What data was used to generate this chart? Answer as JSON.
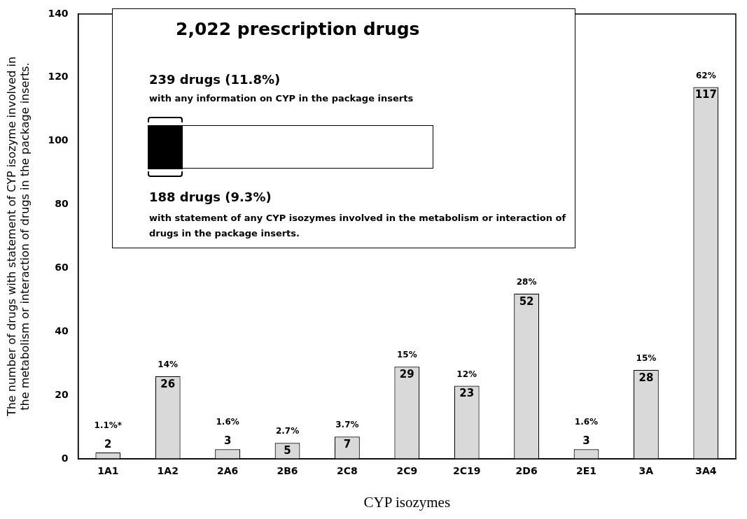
{
  "chart_data": {
    "type": "bar",
    "xlabel": "CYP isozymes",
    "ylabel": "The number of drugs with statement of CYP isozyme involved in the metabolism or interaction of drugs in the package inserts.",
    "categories": [
      "1A1",
      "1A2",
      "2A6",
      "2B6",
      "2C8",
      "2C9",
      "2C19",
      "2D6",
      "2E1",
      "3A",
      "3A4"
    ],
    "values": [
      2,
      26,
      3,
      5,
      7,
      29,
      23,
      52,
      3,
      28,
      117
    ],
    "color": "#d9d9d9",
    "data_labels": true,
    "grid": false,
    "ylim": [
      0,
      140
    ],
    "yticks": [
      0,
      20,
      40,
      60,
      80,
      100,
      120,
      140
    ],
    "annotations": [
      {
        "text": "1.1%*",
        "x": "1A1",
        "y": 2
      },
      {
        "text": "14%",
        "x": "1A2",
        "y": 26
      },
      {
        "text": "1.6%",
        "x": "2A6",
        "y": 3
      },
      {
        "text": "2.7%",
        "x": "2B6",
        "y": 5
      },
      {
        "text": "3.7%",
        "x": "2C8",
        "y": 7
      },
      {
        "text": "15%",
        "x": "2C9",
        "y": 29
      },
      {
        "text": "12%",
        "x": "2C19",
        "y": 23
      },
      {
        "text": "28%",
        "x": "2D6",
        "y": 52
      },
      {
        "text": "1.6%",
        "x": "2E1",
        "y": 3
      },
      {
        "text": "15%",
        "x": "3A",
        "y": 28
      },
      {
        "text": "62%",
        "x": "3A4",
        "y": 117
      },
      "2,022 prescription drugs",
      "239 drugs (11.8%)",
      "with any information on CYP in the package inserts",
      "188 drugs (9.3%)",
      "with statement of any CYP isozymes involved in the metabolism or interaction of drugs in the package inserts."
    ]
  }
}
